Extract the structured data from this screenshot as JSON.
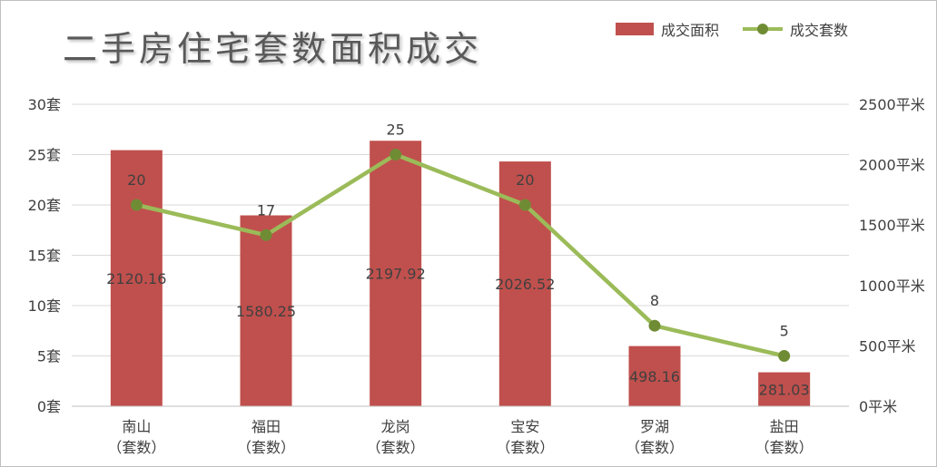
{
  "chart_data": {
    "type": "bar",
    "title": "二手房住宅套数面积成交",
    "categories": [
      "南山\n（套数）",
      "福田\n（套数）",
      "龙岗\n（套数）",
      "宝安\n（套数）",
      "罗湖\n（套数）",
      "盐田\n（套数）"
    ],
    "series": [
      {
        "name": "成交面积",
        "type": "bar",
        "axis": "right",
        "color": "#c0504d",
        "values": [
          2120.16,
          1580.25,
          2197.92,
          2026.52,
          498.16,
          281.03
        ],
        "labels": [
          "2120.16",
          "1580.25",
          "2197.92",
          "2026.52",
          "498.16",
          "281.03"
        ]
      },
      {
        "name": "成交套数",
        "type": "line",
        "axis": "left",
        "color": "#9bbb59",
        "marker_color": "#6f8c35",
        "values": [
          20,
          17,
          25,
          20,
          8,
          5
        ],
        "labels": [
          "20",
          "17",
          "25",
          "20",
          "8",
          "5"
        ]
      }
    ],
    "y_left": {
      "ylim": [
        0,
        30
      ],
      "ticks": [
        0,
        5,
        10,
        15,
        20,
        25,
        30
      ],
      "tick_labels": [
        "0套",
        "5套",
        "10套",
        "15套",
        "20套",
        "25套",
        "30套"
      ]
    },
    "y_right": {
      "ylim": [
        0,
        2500
      ],
      "ticks": [
        0,
        500,
        1000,
        1500,
        2000,
        2500
      ],
      "tick_labels": [
        "0平米",
        "500平米",
        "1000平米",
        "1500平米",
        "2000平米",
        "2500平米"
      ]
    },
    "grid": "horizontal",
    "legend": "top-right"
  }
}
